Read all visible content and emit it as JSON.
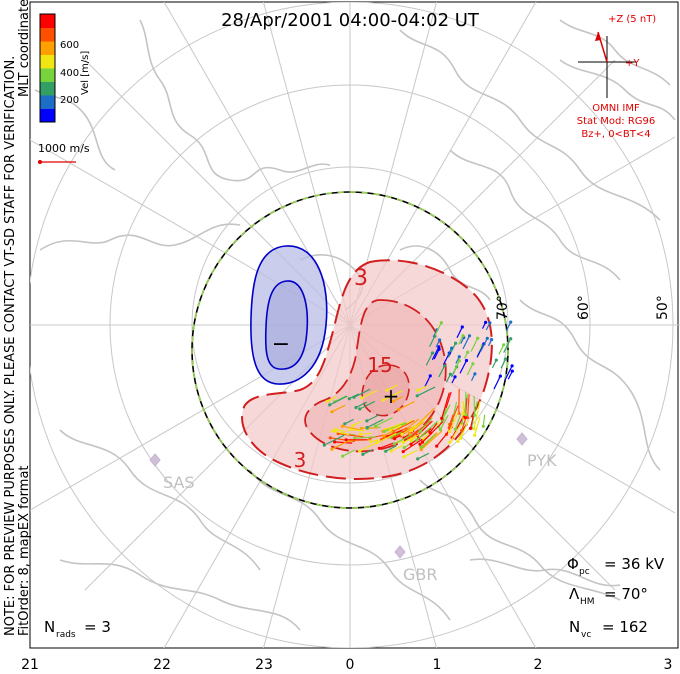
{
  "header": {
    "title": "28/Apr/2001 04:00-04:02 UT",
    "side_note_line1": "NOTE: FOR PREVIEW PURPOSES ONLY. PLEASE CONTACT VT-SD STAFF FOR VERIFICATION.",
    "side_note_line2": "FitOrder: 8, mapEX format",
    "mlt_label": "MLT coordinates"
  },
  "velocity_scale": {
    "label": "Vel [m/s]",
    "ticks": [
      "600",
      "400",
      "200"
    ],
    "colors": [
      "#0000ff",
      "#1e6ec8",
      "#32a064",
      "#78d23c",
      "#f0e614",
      "#ffa000",
      "#ff5000",
      "#ff0000"
    ],
    "reference_vector_label": "1000 m/s"
  },
  "imf": {
    "z_label": "+Z (5 nT)",
    "y_label": "+Y",
    "source_label": "OMNI IMF",
    "model_line1": "Stat Mod: RG96",
    "model_line2": "Bz+, 0<BT<4",
    "color": "#e00000"
  },
  "grid": {
    "latitude_labels": [
      "70°",
      "60°",
      "50°"
    ],
    "mlt_labels": [
      "21",
      "22",
      "23",
      "0",
      "1",
      "2",
      "3"
    ]
  },
  "stations": [
    "SAS",
    "PYK",
    "GBR"
  ],
  "contours": {
    "negative_sign": "−",
    "positive_sign": "+",
    "labels": [
      "3",
      "15",
      "3"
    ],
    "negative_color": "#0000c8",
    "positive_color": "#d21e1e"
  },
  "stats": {
    "phi_label": "Φ",
    "phi_sub": "pc",
    "phi_value": "= 36 kV",
    "lambda_label": "Λ",
    "lambda_sub": "HM",
    "lambda_value": "= 70°",
    "nvc_label": "N",
    "nvc_sub": "vc",
    "nvc_value": "= 162",
    "nrads_label": "N",
    "nrads_sub": "rads",
    "nrads_value": "= 3"
  },
  "chart_data": {
    "type": "vector map (polar convection map)",
    "title": "28/Apr/2001 04:00-04:02 UT",
    "coordinates": "MLT coordinates",
    "x_axis_mlt_ticks": [
      "21",
      "22",
      "23",
      "0",
      "1",
      "2",
      "3"
    ],
    "latitude_circles_deg": [
      70,
      60,
      50
    ],
    "heppner_maynard_boundary_lat_deg": 70,
    "cross_polar_cap_potential_kV": 36,
    "number_of_vectors": 162,
    "number_of_radars": 3,
    "velocity_colorbar_ticks_m_per_s": [
      200,
      400,
      600
    ],
    "reference_vector_m_per_s": 1000,
    "potential_contour_labels_kV": [
      3,
      15,
      3
    ]
  }
}
